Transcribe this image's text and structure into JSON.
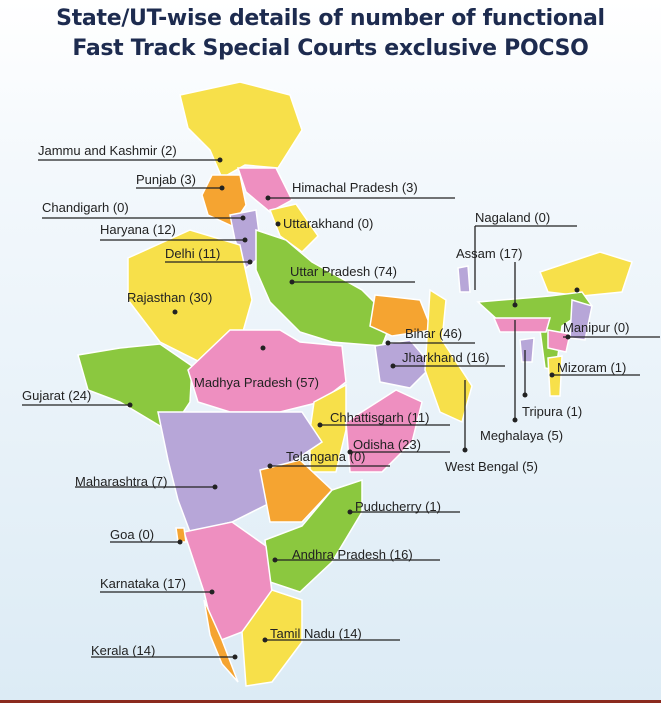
{
  "title": {
    "line1": "State/UT-wise details of number of functional",
    "line2": "Fast Track Special Courts exclusive POCSO"
  },
  "colors": {
    "yellow": "#f7e04a",
    "green": "#8bc83f",
    "pink": "#ee8fc0",
    "purple": "#b7a6d8",
    "orange": "#f5a431",
    "title": "#1d2b4f"
  },
  "states": [
    {
      "name": "Jammu and Kashmir",
      "count": 2
    },
    {
      "name": "Punjab",
      "count": 3
    },
    {
      "name": "Himachal Pradesh",
      "count": 3
    },
    {
      "name": "Chandigarh",
      "count": 0
    },
    {
      "name": "Uttarakhand",
      "count": 0
    },
    {
      "name": "Haryana",
      "count": 12
    },
    {
      "name": "Delhi",
      "count": 11
    },
    {
      "name": "Nagaland",
      "count": 0
    },
    {
      "name": "Assam",
      "count": 17
    },
    {
      "name": "Uttar Pradesh",
      "count": 74
    },
    {
      "name": "Rajasthan",
      "count": 30
    },
    {
      "name": "Bihar",
      "count": 46
    },
    {
      "name": "Manipur",
      "count": 0
    },
    {
      "name": "Jharkhand",
      "count": 16
    },
    {
      "name": "Mizoram",
      "count": 1
    },
    {
      "name": "Madhya Pradesh",
      "count": 57
    },
    {
      "name": "Gujarat",
      "count": 24
    },
    {
      "name": "Chhattisgarh",
      "count": 11
    },
    {
      "name": "Tripura",
      "count": 1
    },
    {
      "name": "Meghalaya",
      "count": 5
    },
    {
      "name": "Odisha",
      "count": 23
    },
    {
      "name": "West Bengal",
      "count": 5
    },
    {
      "name": "Maharashtra",
      "count": 7
    },
    {
      "name": "Telangana",
      "count": 0
    },
    {
      "name": "Puducherry",
      "count": 1
    },
    {
      "name": "Goa",
      "count": 0
    },
    {
      "name": "Andhra Pradesh",
      "count": 16
    },
    {
      "name": "Karnataka",
      "count": 17
    },
    {
      "name": "Tamil Nadu",
      "count": 14
    },
    {
      "name": "Kerala",
      "count": 14
    }
  ]
}
